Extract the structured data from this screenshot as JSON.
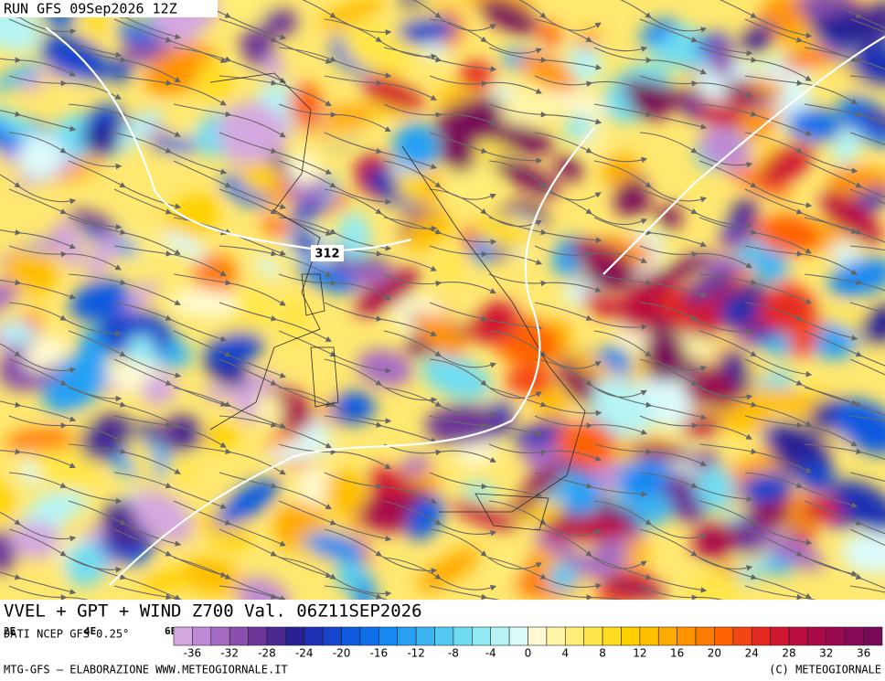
{
  "header": {
    "title": "RUN GFS 09Sep2026 12Z"
  },
  "map": {
    "product": "VVEL + GPT + WIND Z700 Val. 06Z11SEP2026",
    "source": "DATI NCEP GFS 0.25°",
    "contour_label": "312",
    "lon_labels": [
      "2E",
      "4E",
      "6E"
    ]
  },
  "legend": {
    "range": [
      -38,
      38
    ],
    "step": 2,
    "ticks": [
      -36,
      -32,
      -28,
      -24,
      -20,
      -16,
      -12,
      -8,
      -4,
      0,
      4,
      8,
      12,
      16,
      20,
      24,
      28,
      32,
      36
    ],
    "colors": [
      "#d4a8e0",
      "#c08ad6",
      "#a66bc4",
      "#8a4fae",
      "#6d3598",
      "#4a2a90",
      "#2a2094",
      "#1e30b4",
      "#1644cc",
      "#105ae0",
      "#1070ec",
      "#1888f2",
      "#28a0f4",
      "#3cb6f2",
      "#52caf0",
      "#70dcf2",
      "#92eaf4",
      "#b6f4f6",
      "#dcfafa",
      "#fffad2",
      "#fff4a6",
      "#ffee78",
      "#ffe64a",
      "#ffdc20",
      "#ffd000",
      "#ffbe00",
      "#ffaa00",
      "#ff9400",
      "#ff7c00",
      "#ff6200",
      "#f44614",
      "#e42a20",
      "#d01830",
      "#bc0e3e",
      "#aa0a48",
      "#980a50",
      "#880a56",
      "#780a58"
    ]
  },
  "footer": {
    "left": "MTG-GFS — ELABORAZIONE WWW.METEOGIORNALE.IT",
    "right": "(C) METEOGIORNALE"
  }
}
